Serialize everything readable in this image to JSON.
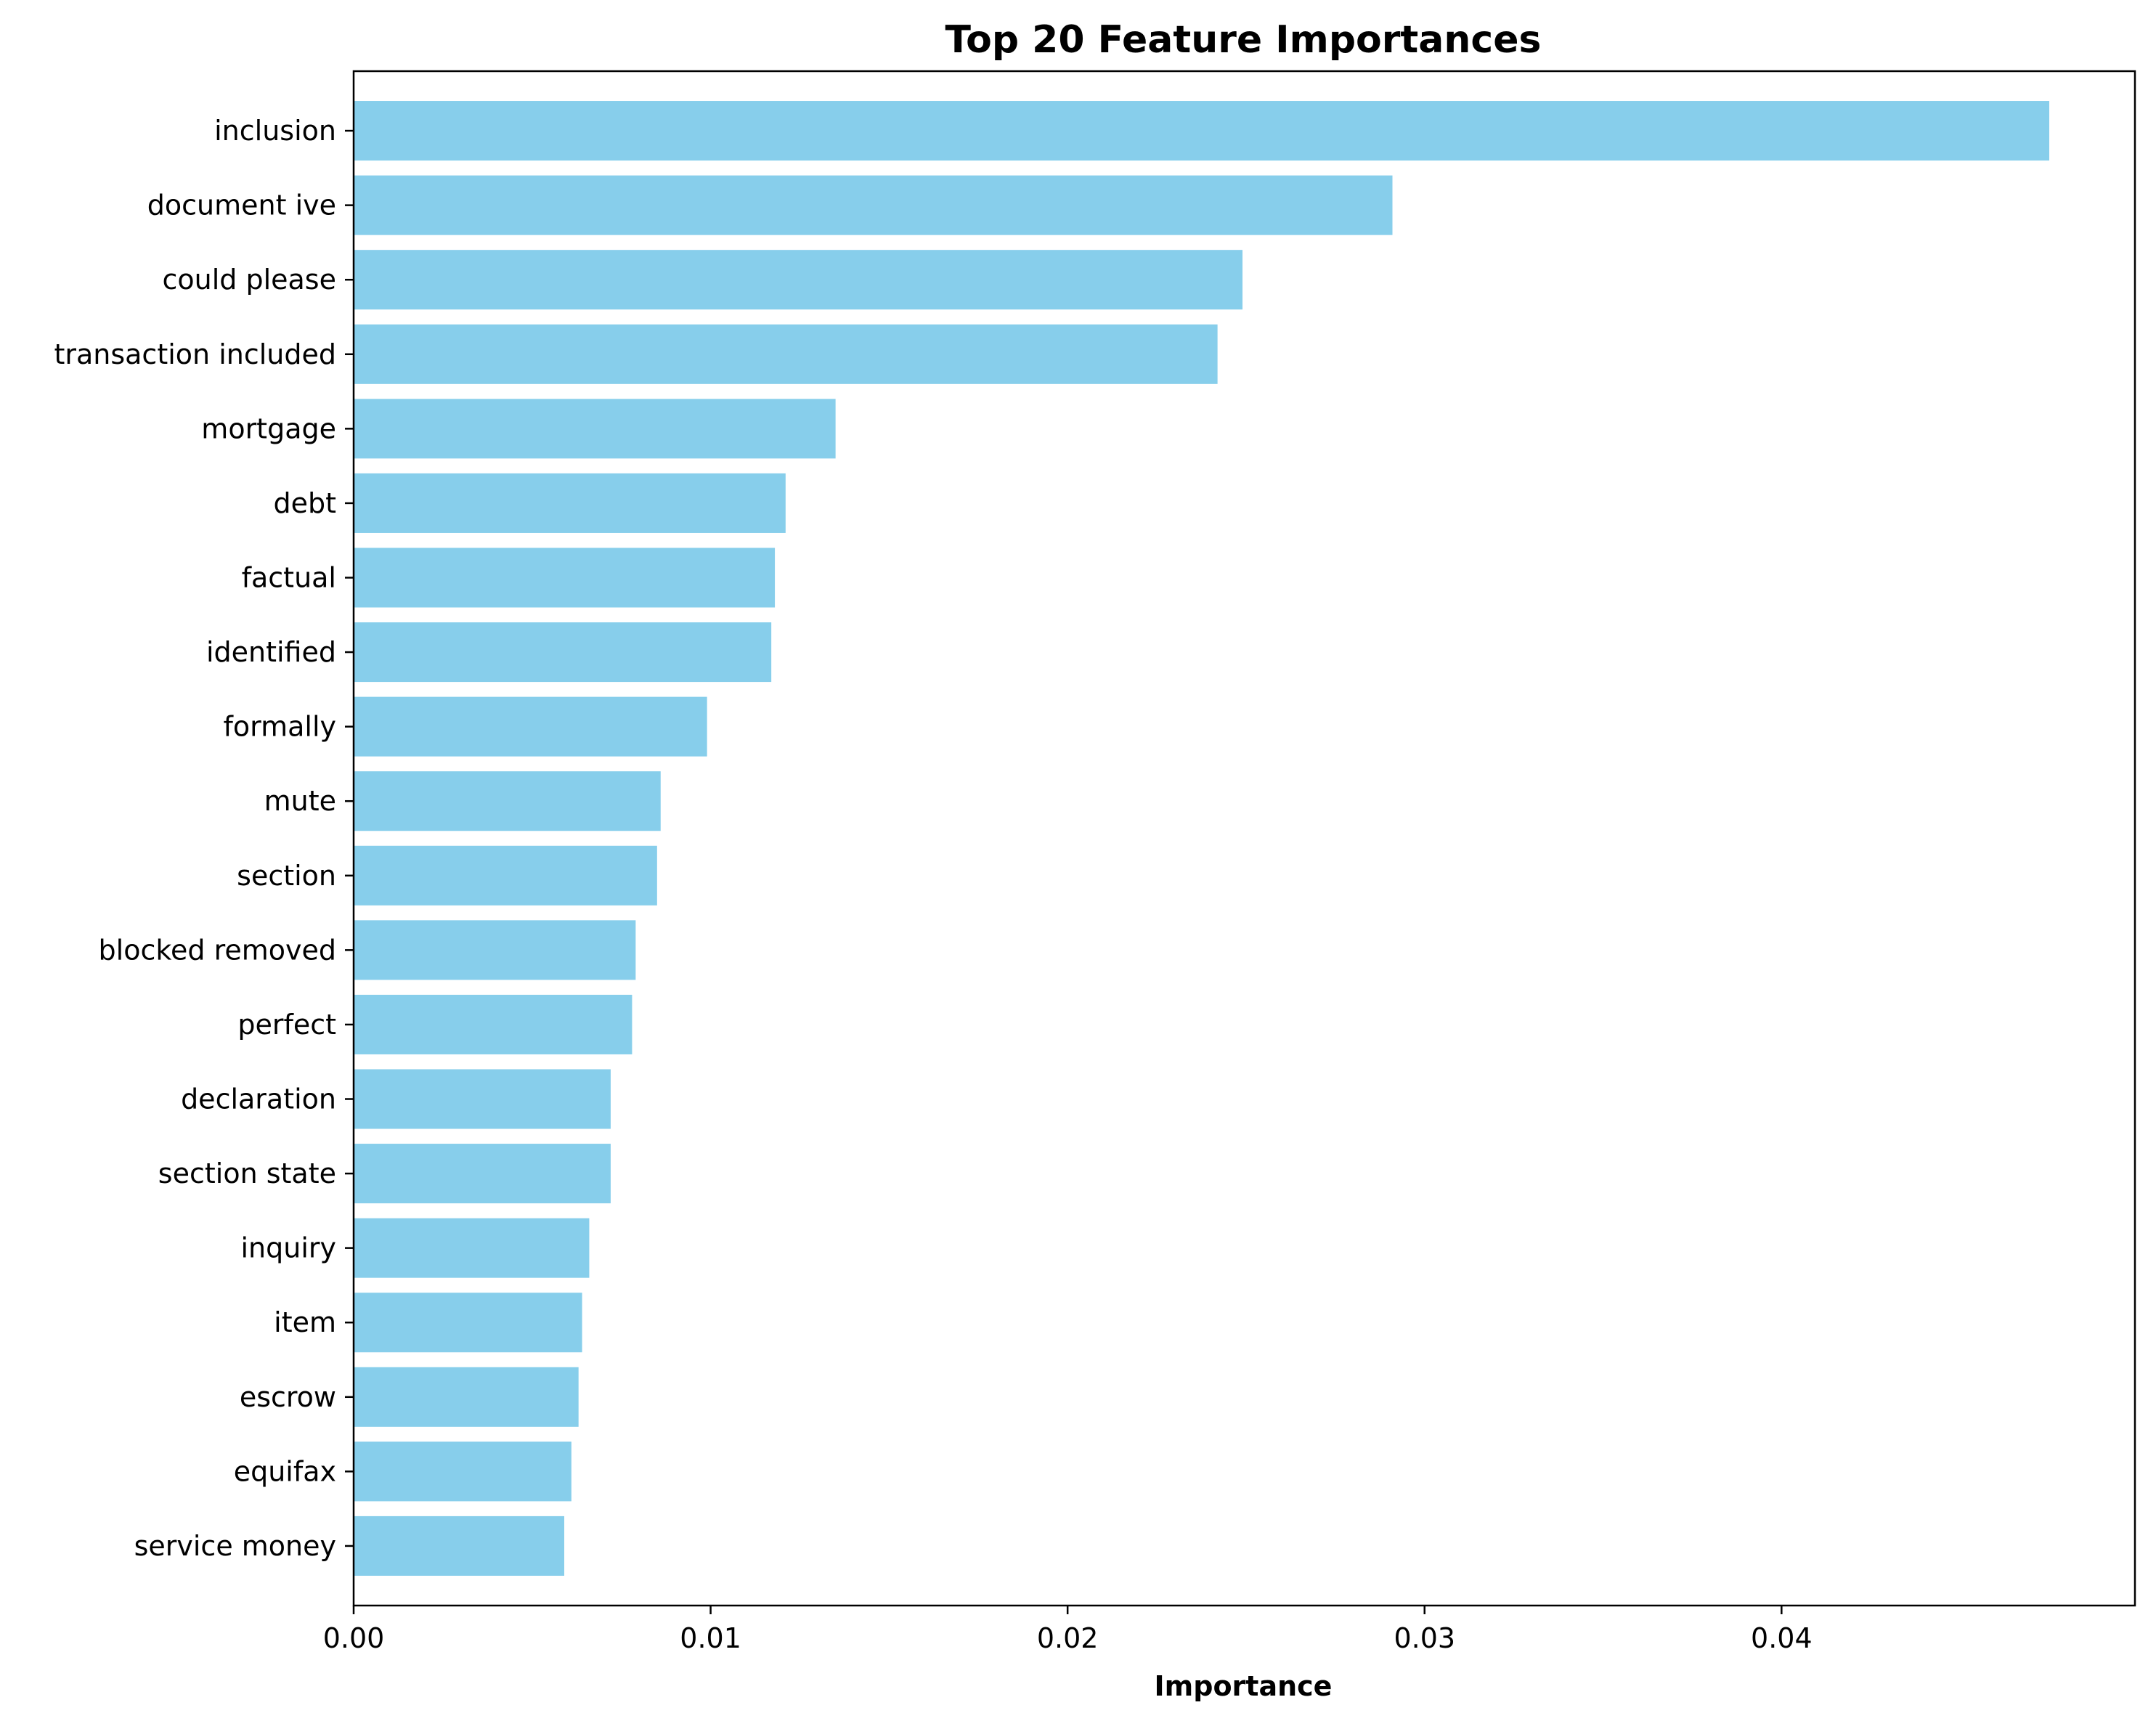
{
  "chart_data": {
    "type": "bar",
    "orientation": "horizontal",
    "title": "Top 20 Feature Importances",
    "xlabel": "Importance",
    "ylabel": "",
    "xlim": [
      0,
      0.0499
    ],
    "xticks": [
      0,
      0.01,
      0.02,
      0.03,
      0.04
    ],
    "xtick_labels": [
      "0.00",
      "0.01",
      "0.02",
      "0.03",
      "0.04"
    ],
    "grid": false,
    "bar_color": "#87ceeb",
    "categories": [
      "inclusion",
      "document ive",
      "could please",
      "transaction included",
      "mortgage",
      "debt",
      "factual",
      "identified",
      "formally",
      "mute",
      "section",
      "blocked removed",
      "perfect",
      "declaration",
      "section state",
      "inquiry",
      "item",
      "escrow",
      "equifax",
      "service money"
    ],
    "values": [
      0.0475,
      0.0291,
      0.0249,
      0.0242,
      0.0135,
      0.0121,
      0.0118,
      0.0117,
      0.0099,
      0.0086,
      0.0085,
      0.0079,
      0.0078,
      0.0072,
      0.0072,
      0.0066,
      0.0064,
      0.0063,
      0.0061,
      0.0059
    ]
  }
}
